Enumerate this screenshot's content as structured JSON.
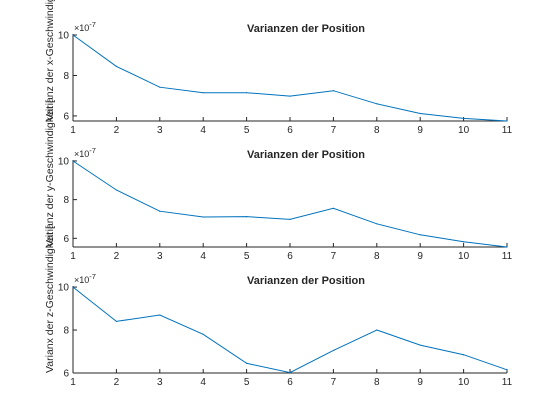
{
  "colors": {
    "series": "#0072BD",
    "axes": "#262626",
    "background": "#ffffff"
  },
  "chart_data": [
    {
      "type": "line",
      "title": "Varianzen der Position",
      "ylabel": "Varianx der x-Geschwindigkeit [m/s]",
      "ylabel_visible": "Varianz der x-Geschwindigkeit [",
      "y_exponent_base": "×10",
      "y_exponent_power": "-7",
      "x": [
        1,
        2,
        3,
        4,
        5,
        6,
        7,
        8,
        9,
        10,
        11
      ],
      "y": [
        10.0,
        8.45,
        7.42,
        7.15,
        7.15,
        6.98,
        7.25,
        6.6,
        6.12,
        5.88,
        5.75
      ],
      "xlim": [
        1,
        11
      ],
      "ylim": [
        5.75,
        10.05
      ],
      "xticks": [
        1,
        2,
        3,
        4,
        5,
        6,
        7,
        8,
        9,
        10,
        11
      ],
      "yticks": [
        6,
        8,
        10
      ],
      "grid": false,
      "legend": "none"
    },
    {
      "type": "line",
      "title": "Varianzen der Position",
      "ylabel_visible": "Varianz der y-Geschwindigkeit [",
      "y_exponent_base": "×10",
      "y_exponent_power": "-7",
      "x": [
        1,
        2,
        3,
        4,
        5,
        6,
        7,
        8,
        9,
        10,
        11
      ],
      "y": [
        10.0,
        8.5,
        7.4,
        7.1,
        7.12,
        6.98,
        7.55,
        6.75,
        6.18,
        5.82,
        5.55
      ],
      "xlim": [
        1,
        11
      ],
      "ylim": [
        5.55,
        10.05
      ],
      "xticks": [
        1,
        2,
        3,
        4,
        5,
        6,
        7,
        8,
        9,
        10,
        11
      ],
      "yticks": [
        6,
        8,
        10
      ],
      "grid": false,
      "legend": "none"
    },
    {
      "type": "line",
      "title": "Varianzen der Position",
      "ylabel_visible": "Varianx der z-Geschwindigkeit [",
      "y_exponent_base": "×10",
      "y_exponent_power": "-7",
      "x": [
        1,
        2,
        3,
        4,
        5,
        6,
        7,
        8,
        9,
        10,
        11
      ],
      "y": [
        10.0,
        8.4,
        8.7,
        7.8,
        6.45,
        6.02,
        7.05,
        8.0,
        7.3,
        6.85,
        6.15
      ],
      "xlim": [
        1,
        11
      ],
      "ylim": [
        6.0,
        10.05
      ],
      "xticks": [
        1,
        2,
        3,
        4,
        5,
        6,
        7,
        8,
        9,
        10,
        11
      ],
      "yticks": [
        6,
        8,
        10
      ],
      "grid": false,
      "legend": "none"
    }
  ]
}
